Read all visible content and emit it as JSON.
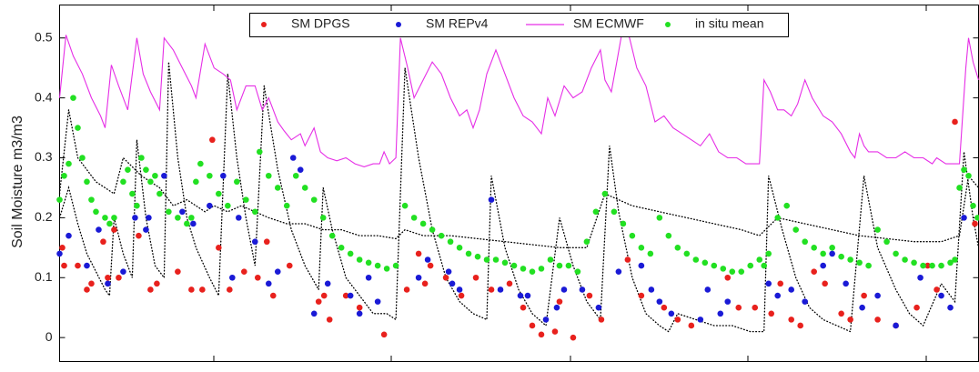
{
  "chart_data": {
    "type": "scatter",
    "y_label": "Soil Moisture m3/m3",
    "xlim": [
      0,
      1011
    ],
    "ylim": [
      -0.04,
      0.555
    ],
    "yticks": [
      0,
      0.1,
      0.2,
      0.3,
      0.4,
      0.5
    ],
    "legend": "top",
    "series": [
      {
        "color": "#000000",
        "style": "dotted-line",
        "x": [
          0,
          10,
          20,
          40,
          60,
          70,
          90,
          110,
          125,
          140,
          150,
          160,
          170,
          185,
          200,
          215,
          230,
          250,
          270,
          290,
          310,
          330,
          350,
          370,
          380,
          400,
          430,
          460,
          490,
          520,
          550,
          580,
          600,
          630,
          660,
          690,
          720,
          750,
          770,
          790,
          820,
          850,
          880,
          910,
          940,
          970,
          990,
          1000,
          1011
        ],
        "values": [
          0.24,
          0.38,
          0.3,
          0.26,
          0.24,
          0.3,
          0.27,
          0.25,
          0.22,
          0.23,
          0.22,
          0.21,
          0.22,
          0.21,
          0.22,
          0.21,
          0.2,
          0.19,
          0.19,
          0.18,
          0.18,
          0.17,
          0.17,
          0.165,
          0.18,
          0.17,
          0.17,
          0.165,
          0.16,
          0.155,
          0.15,
          0.15,
          0.24,
          0.22,
          0.21,
          0.2,
          0.19,
          0.18,
          0.17,
          0.2,
          0.19,
          0.18,
          0.17,
          0.165,
          0.16,
          0.16,
          0.17,
          0.27,
          0.25
        ]
      },
      {
        "color": "#000000",
        "style": "dotted-line",
        "x": [
          0,
          10,
          20,
          30,
          40,
          50,
          55,
          60,
          70,
          80,
          85,
          95,
          105,
          115,
          120,
          130,
          140,
          150,
          165,
          175,
          185,
          195,
          205,
          215,
          225,
          240,
          255,
          270,
          285,
          290,
          300,
          315,
          330,
          345,
          360,
          370,
          380,
          395,
          410,
          425,
          440,
          455,
          470,
          475,
          490,
          505,
          520,
          535,
          550,
          565,
          580,
          595,
          605,
          615,
          630,
          645,
          660,
          670,
          680,
          700,
          720,
          740,
          760,
          775,
          780,
          795,
          810,
          825,
          840,
          855,
          870,
          885,
          900,
          920,
          935,
          950,
          970,
          985,
          995,
          1005,
          1011
        ],
        "values": [
          0.2,
          0.25,
          0.19,
          0.14,
          0.11,
          0.08,
          0.07,
          0.2,
          0.14,
          0.1,
          0.33,
          0.2,
          0.12,
          0.1,
          0.46,
          0.3,
          0.2,
          0.15,
          0.1,
          0.07,
          0.44,
          0.3,
          0.2,
          0.12,
          0.42,
          0.28,
          0.18,
          0.12,
          0.08,
          0.25,
          0.18,
          0.1,
          0.07,
          0.04,
          0.04,
          0.03,
          0.45,
          0.3,
          0.18,
          0.1,
          0.06,
          0.04,
          0.03,
          0.27,
          0.15,
          0.08,
          0.04,
          0.02,
          0.2,
          0.12,
          0.06,
          0.03,
          0.32,
          0.21,
          0.1,
          0.04,
          0.02,
          0.01,
          0.04,
          0.03,
          0.02,
          0.02,
          0.01,
          0.01,
          0.27,
          0.18,
          0.1,
          0.05,
          0.03,
          0.02,
          0.01,
          0.27,
          0.15,
          0.08,
          0.04,
          0.02,
          0.09,
          0.06,
          0.31,
          0.2,
          0.15
        ]
      },
      {
        "name": "SM DPGS",
        "color": "#e8211d",
        "style": "dots",
        "x": [
          3,
          5,
          20,
          30,
          35,
          48,
          53,
          60,
          65,
          87,
          100,
          107,
          130,
          145,
          157,
          168,
          175,
          187,
          203,
          218,
          228,
          235,
          253,
          285,
          291,
          297,
          315,
          330,
          357,
          382,
          395,
          402,
          408,
          425,
          442,
          458,
          475,
          495,
          510,
          520,
          530,
          545,
          550,
          565,
          583,
          596,
          625,
          640,
          665,
          680,
          695,
          735,
          747,
          765,
          783,
          793,
          805,
          815,
          830,
          842,
          860,
          870,
          885,
          900,
          920,
          943,
          955,
          965,
          985,
          1007
        ],
        "values": [
          0.15,
          0.12,
          0.12,
          0.08,
          0.09,
          0.16,
          0.1,
          0.18,
          0.1,
          0.17,
          0.08,
          0.09,
          0.11,
          0.08,
          0.08,
          0.33,
          0.15,
          0.08,
          0.11,
          0.1,
          0.16,
          0.07,
          0.12,
          0.06,
          0.07,
          0.03,
          0.07,
          0.05,
          0.005,
          0.08,
          0.14,
          0.09,
          0.12,
          0.1,
          0.07,
          0.1,
          0.08,
          0.09,
          0.05,
          0.02,
          0.005,
          0.01,
          0.06,
          0,
          0.07,
          0.03,
          0.13,
          0.07,
          0.05,
          0.03,
          0.02,
          0.1,
          0.05,
          0.05,
          0.04,
          0.09,
          0.03,
          0.02,
          0.11,
          0.09,
          0.04,
          0.03,
          0.07,
          0.03,
          0.02,
          0.05,
          0.12,
          0.08,
          0.36,
          0.19
        ]
      },
      {
        "name": "SM REPv4",
        "color": "#1a1ad6",
        "style": "dots",
        "x": [
          0,
          10,
          30,
          43,
          53,
          70,
          83,
          95,
          98,
          115,
          135,
          147,
          165,
          180,
          190,
          197,
          215,
          230,
          240,
          257,
          265,
          280,
          295,
          320,
          330,
          340,
          350,
          395,
          405,
          428,
          432,
          440,
          475,
          485,
          507,
          515,
          535,
          547,
          555,
          575,
          593,
          615,
          640,
          651,
          660,
          673,
          705,
          713,
          727,
          735,
          780,
          790,
          805,
          820,
          840,
          850,
          865,
          883,
          900,
          920,
          947,
          970,
          980,
          995
        ],
        "values": [
          0.14,
          0.17,
          0.12,
          0.18,
          0.09,
          0.11,
          0.2,
          0.18,
          0.2,
          0.27,
          0.21,
          0.19,
          0.22,
          0.27,
          0.1,
          0.2,
          0.16,
          0.09,
          0.11,
          0.3,
          0.28,
          0.04,
          0.09,
          0.07,
          0.04,
          0.1,
          0.06,
          0.1,
          0.13,
          0.11,
          0.09,
          0.08,
          0.23,
          0.08,
          0.07,
          0.07,
          0.03,
          0.05,
          0.08,
          0.08,
          0.05,
          0.11,
          0.12,
          0.08,
          0.06,
          0.04,
          0.03,
          0.08,
          0.04,
          0.06,
          0.09,
          0.07,
          0.08,
          0.06,
          0.12,
          0.14,
          0.09,
          0.05,
          0.07,
          0.02,
          0.1,
          0.07,
          0.05,
          0.2
        ]
      },
      {
        "name": "SM ECMWF",
        "color": "#e62ee6",
        "style": "line",
        "x": [
          0,
          7,
          15,
          25,
          35,
          45,
          50,
          57,
          65,
          75,
          85,
          92,
          100,
          110,
          115,
          125,
          135,
          145,
          150,
          160,
          170,
          180,
          188,
          195,
          205,
          215,
          223,
          230,
          240,
          247,
          255,
          265,
          270,
          280,
          287,
          295,
          305,
          315,
          325,
          335,
          345,
          352,
          357,
          363,
          370,
          375,
          383,
          390,
          400,
          410,
          420,
          430,
          440,
          448,
          455,
          462,
          470,
          480,
          490,
          500,
          510,
          520,
          530,
          537,
          545,
          555,
          565,
          575,
          585,
          595,
          600,
          607,
          613,
          620,
          627,
          635,
          645,
          655,
          665,
          675,
          685,
          695,
          705,
          715,
          725,
          735,
          745,
          755,
          765,
          770,
          775,
          782,
          790,
          797,
          805,
          812,
          820,
          828,
          840,
          850,
          860,
          870,
          875,
          880,
          885,
          890,
          900,
          910,
          920,
          930,
          940,
          950,
          960,
          965,
          975,
          985,
          990,
          997,
          1000,
          1005,
          1011
        ],
        "values": [
          0.4,
          0.505,
          0.47,
          0.44,
          0.4,
          0.37,
          0.35,
          0.455,
          0.42,
          0.38,
          0.5,
          0.44,
          0.41,
          0.38,
          0.5,
          0.48,
          0.45,
          0.42,
          0.4,
          0.49,
          0.45,
          0.44,
          0.43,
          0.38,
          0.42,
          0.42,
          0.38,
          0.4,
          0.36,
          0.345,
          0.33,
          0.34,
          0.32,
          0.35,
          0.31,
          0.3,
          0.295,
          0.3,
          0.29,
          0.285,
          0.29,
          0.29,
          0.31,
          0.29,
          0.3,
          0.5,
          0.45,
          0.4,
          0.43,
          0.46,
          0.44,
          0.4,
          0.37,
          0.38,
          0.35,
          0.38,
          0.44,
          0.48,
          0.44,
          0.4,
          0.37,
          0.36,
          0.34,
          0.4,
          0.37,
          0.42,
          0.4,
          0.41,
          0.45,
          0.48,
          0.43,
          0.41,
          0.46,
          0.52,
          0.5,
          0.45,
          0.42,
          0.36,
          0.37,
          0.35,
          0.34,
          0.33,
          0.32,
          0.34,
          0.31,
          0.3,
          0.3,
          0.29,
          0.29,
          0.29,
          0.43,
          0.41,
          0.38,
          0.38,
          0.37,
          0.39,
          0.43,
          0.4,
          0.37,
          0.36,
          0.34,
          0.31,
          0.3,
          0.34,
          0.32,
          0.31,
          0.31,
          0.3,
          0.3,
          0.31,
          0.3,
          0.3,
          0.29,
          0.3,
          0.29,
          0.29,
          0.29,
          0.45,
          0.5,
          0.46,
          0.43
        ]
      },
      {
        "name": "in situ mean",
        "color": "#22e022",
        "style": "dots",
        "x": [
          0,
          5,
          10,
          15,
          20,
          25,
          30,
          35,
          40,
          50,
          55,
          60,
          70,
          75,
          80,
          85,
          90,
          95,
          100,
          105,
          110,
          120,
          130,
          140,
          145,
          150,
          155,
          165,
          175,
          185,
          195,
          205,
          215,
          220,
          230,
          240,
          250,
          260,
          270,
          280,
          290,
          300,
          310,
          320,
          330,
          340,
          350,
          360,
          370,
          380,
          390,
          400,
          410,
          420,
          430,
          440,
          450,
          460,
          470,
          480,
          490,
          500,
          510,
          520,
          530,
          540,
          550,
          560,
          570,
          580,
          590,
          600,
          610,
          620,
          630,
          640,
          650,
          660,
          670,
          680,
          690,
          700,
          710,
          720,
          730,
          740,
          750,
          760,
          770,
          775,
          780,
          790,
          800,
          810,
          820,
          830,
          840,
          850,
          860,
          870,
          880,
          890,
          900,
          910,
          920,
          930,
          940,
          950,
          960,
          970,
          980,
          985,
          990,
          995,
          1000,
          1005,
          1010
        ],
        "values": [
          0.23,
          0.27,
          0.29,
          0.4,
          0.35,
          0.3,
          0.26,
          0.23,
          0.21,
          0.2,
          0.19,
          0.2,
          0.26,
          0.28,
          0.24,
          0.22,
          0.3,
          0.28,
          0.26,
          0.27,
          0.24,
          0.21,
          0.2,
          0.19,
          0.2,
          0.26,
          0.29,
          0.27,
          0.24,
          0.22,
          0.26,
          0.23,
          0.21,
          0.31,
          0.27,
          0.25,
          0.22,
          0.27,
          0.25,
          0.23,
          0.2,
          0.17,
          0.15,
          0.14,
          0.13,
          0.125,
          0.12,
          0.115,
          0.12,
          0.22,
          0.2,
          0.19,
          0.18,
          0.17,
          0.16,
          0.15,
          0.14,
          0.135,
          0.13,
          0.13,
          0.125,
          0.12,
          0.115,
          0.11,
          0.115,
          0.13,
          0.12,
          0.12,
          0.11,
          0.16,
          0.21,
          0.24,
          0.21,
          0.19,
          0.17,
          0.15,
          0.14,
          0.2,
          0.17,
          0.15,
          0.14,
          0.13,
          0.125,
          0.12,
          0.115,
          0.11,
          0.11,
          0.12,
          0.13,
          0.12,
          0.14,
          0.2,
          0.22,
          0.18,
          0.16,
          0.15,
          0.14,
          0.15,
          0.135,
          0.13,
          0.125,
          0.12,
          0.18,
          0.16,
          0.14,
          0.13,
          0.125,
          0.12,
          0.12,
          0.12,
          0.125,
          0.13,
          0.25,
          0.28,
          0.27,
          0.22,
          0.2
        ]
      }
    ]
  }
}
